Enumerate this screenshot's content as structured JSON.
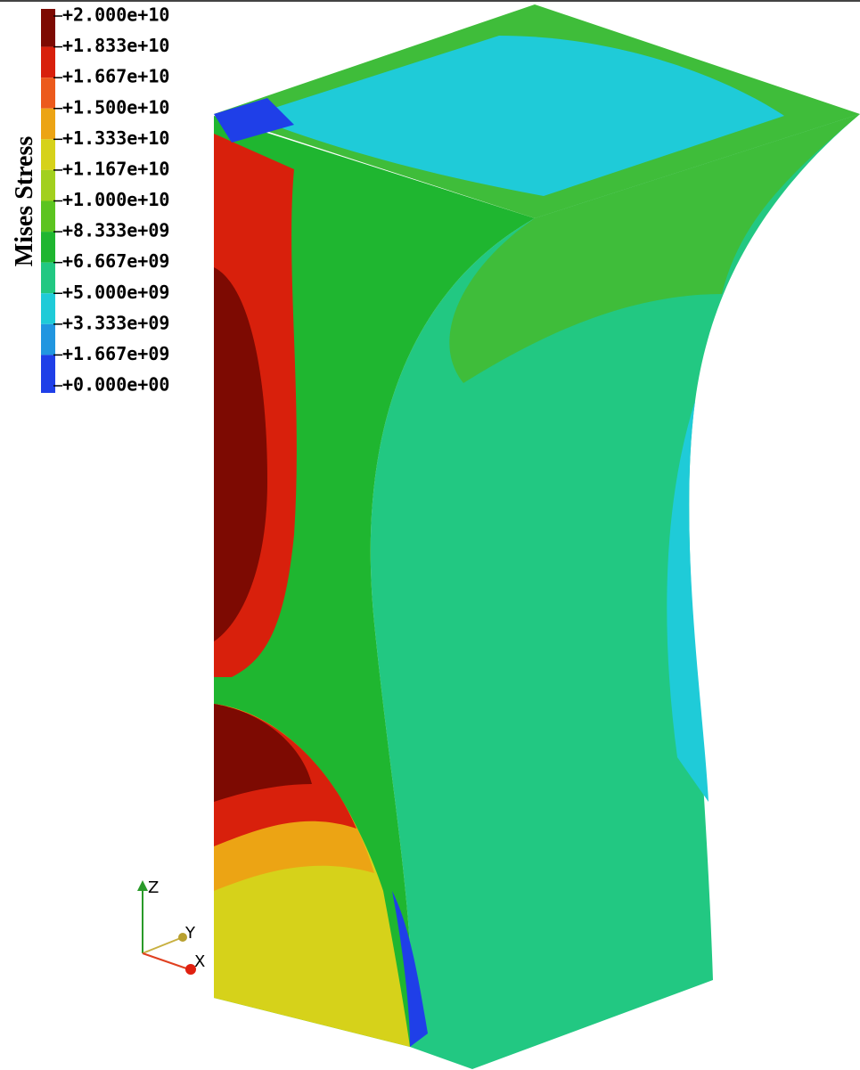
{
  "legend": {
    "title": "Mises Stress",
    "labels": [
      "+2.000e+10",
      "+1.833e+10",
      "+1.667e+10",
      "+1.500e+10",
      "+1.333e+10",
      "+1.167e+10",
      "+1.000e+10",
      "+8.333e+09",
      "+6.667e+09",
      "+5.000e+09",
      "+3.333e+09",
      "+1.667e+09",
      "+0.000e+00"
    ],
    "colors": [
      "#7d0a02",
      "#d8200c",
      "#ec5a1c",
      "#eca414",
      "#d6d21a",
      "#a2d01e",
      "#5cc420",
      "#1fb630",
      "#22c882",
      "#1fcbd8",
      "#2196e0",
      "#1f3fe8"
    ]
  },
  "triad": {
    "z": "Z",
    "y": "Y",
    "x": "X"
  }
}
